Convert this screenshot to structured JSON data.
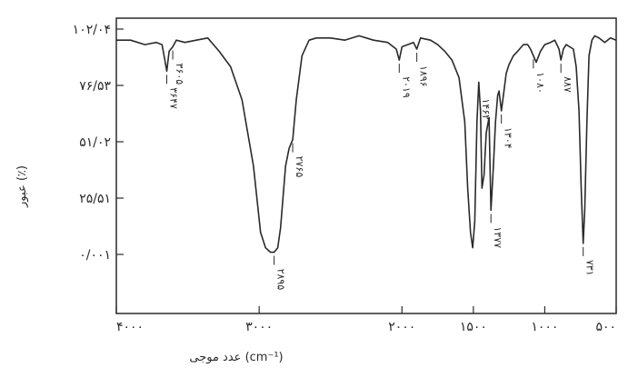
{
  "chart_data": {
    "type": "line",
    "title": "",
    "xlabel": "عدد موجی (cm⁻¹)",
    "ylabel": "عبور (٪)",
    "x_reversed": true,
    "xlim": [
      4000,
      500
    ],
    "ylim": [
      0.001,
      102.04
    ],
    "grid": false,
    "x_ticks": [
      {
        "value": 4000,
        "label": "۴۰۰۰"
      },
      {
        "value": 3000,
        "label": "۳۰۰۰"
      },
      {
        "value": 2000,
        "label": "۲۰۰۰"
      },
      {
        "value": 1500,
        "label": "۱۵۰۰"
      },
      {
        "value": 1000,
        "label": "۱۰۰۰"
      },
      {
        "value": 500,
        "label": "۵۰۰"
      }
    ],
    "y_ticks": [
      {
        "value": 0.001,
        "label": "۰/۰۰۱"
      },
      {
        "value": 25.51,
        "label": "۲۵/۵۱"
      },
      {
        "value": 51.02,
        "label": "۵۱/۰۲"
      },
      {
        "value": 76.53,
        "label": "۷۶/۵۳"
      },
      {
        "value": 102.04,
        "label": "۱۰۲/۰۴"
      }
    ],
    "series": [
      {
        "x": [
          4000,
          3900,
          3800,
          3720,
          3680,
          3660,
          3647,
          3630,
          3605,
          3580,
          3520,
          3440,
          3360,
          3320,
          3280,
          3200,
          3120,
          3040,
          2990,
          2955,
          2920,
          2895,
          2870,
          2850,
          2815,
          2790,
          2765,
          2740,
          2700,
          2650,
          2600,
          2500,
          2400,
          2300,
          2200,
          2100,
          2040,
          2019,
          2000,
          1960,
          1920,
          1896,
          1870,
          1800,
          1750,
          1700,
          1650,
          1600,
          1560,
          1540,
          1520,
          1505,
          1490,
          1475,
          1462,
          1450,
          1440,
          1425,
          1410,
          1390,
          1377,
          1360,
          1345,
          1330,
          1320,
          1304,
          1290,
          1270,
          1250,
          1220,
          1190,
          1150,
          1120,
          1100,
          1080,
          1060,
          1030,
          1000,
          960,
          930,
          900,
          887,
          870,
          850,
          800,
          780,
          760,
          745,
          731,
          720,
          705,
          690,
          670,
          650,
          620,
          580,
          540,
          500
        ],
        "y": [
          97,
          97,
          95,
          96,
          95,
          88,
          83,
          92,
          94,
          97,
          96,
          97,
          98,
          95,
          92,
          85,
          70,
          40,
          10,
          3,
          1,
          1,
          3,
          12,
          40,
          48,
          52,
          70,
          90,
          97,
          98,
          98,
          97,
          99,
          97,
          96,
          93,
          88,
          94,
          95,
          96,
          93,
          98,
          97,
          95,
          92,
          88,
          80,
          60,
          30,
          10,
          3,
          15,
          60,
          78,
          65,
          30,
          36,
          55,
          62,
          20,
          40,
          60,
          72,
          74,
          65,
          72,
          82,
          86,
          90,
          92,
          95,
          95,
          93,
          90,
          87,
          92,
          95,
          96,
          97,
          93,
          88,
          93,
          95,
          93,
          85,
          65,
          30,
          5,
          20,
          60,
          90,
          97,
          99,
          98,
          96,
          98,
          97
        ]
      }
    ],
    "annotations": [
      {
        "x": 3647,
        "label": "۳۶۴۷"
      },
      {
        "x": 3605,
        "label": "۳۶۰۵"
      },
      {
        "x": 2895,
        "label": "۲۸۹۵"
      },
      {
        "x": 2765,
        "label": "۲۷۶۵"
      },
      {
        "x": 2019,
        "label": "۲۰۱۹"
      },
      {
        "x": 1896,
        "label": "۱۸۹۶"
      },
      {
        "x": 1462,
        "label": "۱۴۶۲"
      },
      {
        "x": 1377,
        "label": "۱۳۷۷"
      },
      {
        "x": 1304,
        "label": "۱۳۰۴"
      },
      {
        "x": 1080,
        "label": "۱۰۸۰"
      },
      {
        "x": 887,
        "label": "۸۸۷"
      },
      {
        "x": 731,
        "label": "۷۳۱"
      }
    ],
    "colors": {
      "line": "#2a2a2a",
      "axis": "#2a2a2a",
      "text": "#2a2a2a"
    }
  }
}
